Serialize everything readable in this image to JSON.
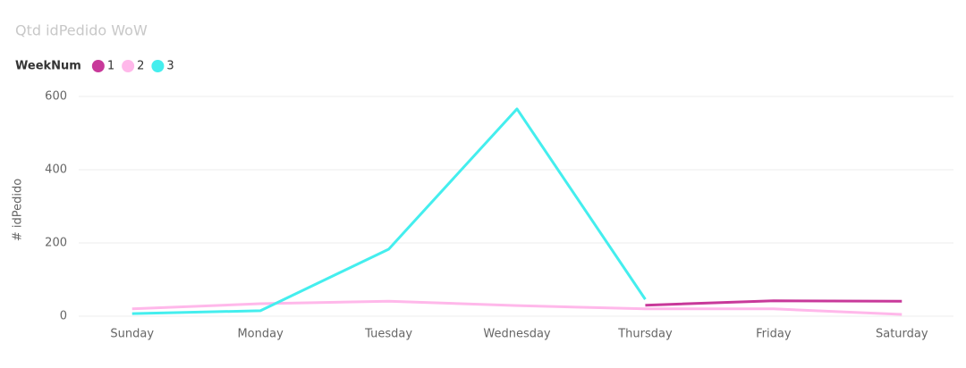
{
  "chart_data": {
    "type": "line",
    "title": "Qtd idPedido WoW",
    "legend_title": "WeekNum",
    "y_label": "# idPedido",
    "categories": [
      "Sunday",
      "Monday",
      "Tuesday",
      "Wednesday",
      "Thursday",
      "Friday",
      "Saturday"
    ],
    "series": [
      {
        "name": "1",
        "color": "#c8399a",
        "values": [
          null,
          null,
          null,
          null,
          30,
          42,
          41
        ]
      },
      {
        "name": "2",
        "color": "#ffb8ea",
        "values": [
          20,
          34,
          41,
          29,
          20,
          20,
          5
        ]
      },
      {
        "name": "3",
        "color": "#44eeee",
        "values": [
          7,
          15,
          183,
          566,
          46,
          null,
          null
        ]
      }
    ],
    "ylim": [
      0,
      600
    ],
    "yticks": [
      0,
      200,
      400,
      600
    ],
    "grid": true
  }
}
